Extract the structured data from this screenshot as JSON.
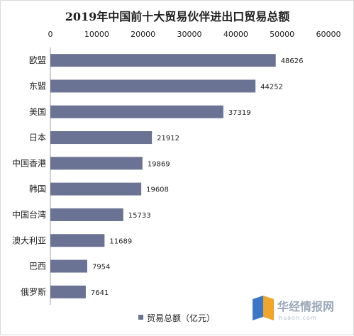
{
  "chart_data": {
    "type": "bar",
    "orientation": "horizontal",
    "title": "2019年中国前十大贸易伙伴进出口贸易总额",
    "categories": [
      "欧盟",
      "东盟",
      "美国",
      "日本",
      "中国香港",
      "韩国",
      "中国台湾",
      "澳大利亚",
      "巴西",
      "俄罗斯"
    ],
    "series": [
      {
        "name": "贸易总额（亿元）",
        "values": [
          48626,
          44252,
          37319,
          21912,
          19869,
          19608,
          15733,
          11689,
          7954,
          7641
        ]
      }
    ],
    "value_labels": [
      "48626",
      "44252",
      "37319",
      "21912",
      "19869",
      "19608",
      "15733",
      "11689",
      "7954",
      "7641"
    ],
    "xlim": [
      0,
      60000
    ],
    "x_ticks": [
      "0",
      "10000",
      "20000",
      "30000",
      "40000",
      "50000",
      "60000"
    ],
    "x_axis_position": "top",
    "grid": false,
    "legend_position": "bottom",
    "bar_color": "#6b7394"
  },
  "watermark": {
    "brand": "华经情报网",
    "url": "huaon.com"
  }
}
